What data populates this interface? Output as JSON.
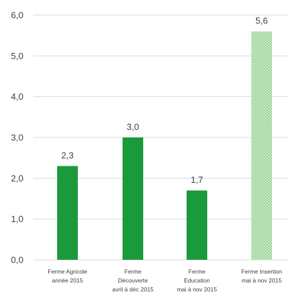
{
  "chart_data": {
    "type": "bar",
    "categories": [
      [
        "Ferme Agricole",
        "année 2015"
      ],
      [
        "Ferme",
        "Découverte",
        "avril à déc 2015"
      ],
      [
        "Ferme",
        "Education",
        "mai à nov 2015"
      ],
      [
        "Ferme Insertion",
        "mai à nov 2015"
      ]
    ],
    "values": [
      2.3,
      3.0,
      1.7,
      5.6
    ],
    "value_labels": [
      "2,3",
      "3,0",
      "1,7",
      "5,6"
    ],
    "y_tick_labels": [
      "0,0",
      "1,0",
      "2,0",
      "3,0",
      "4,0",
      "5,0",
      "6,0"
    ],
    "y_ticks": [
      0,
      1,
      2,
      3,
      4,
      5,
      6
    ],
    "ylim": [
      0,
      6
    ],
    "grid": true,
    "bar_styles": [
      "solid",
      "solid",
      "solid",
      "hatched"
    ],
    "colors": {
      "bar": "#1a9a3a",
      "hatch_background": "#d6efd4",
      "hatch_line": "#8fd08f",
      "grid": "#d9d9d9",
      "text": "#404040"
    }
  }
}
